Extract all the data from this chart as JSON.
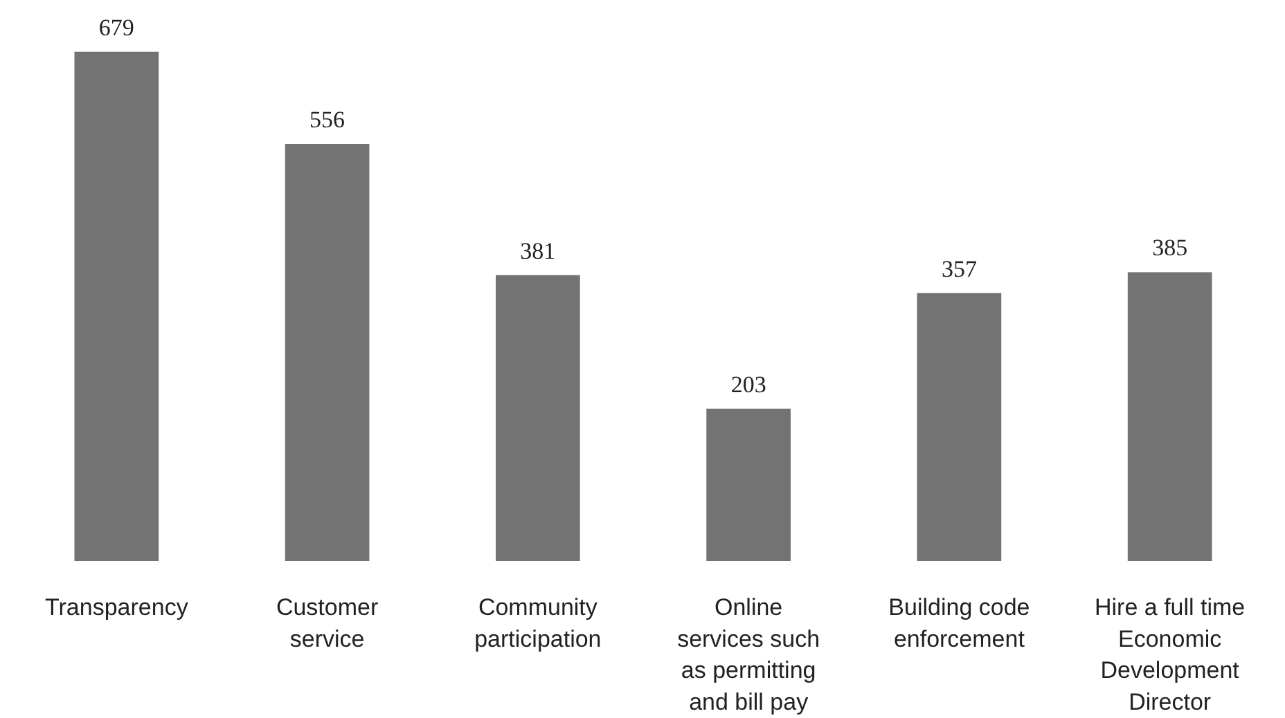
{
  "chart_data": {
    "type": "bar",
    "categories": [
      "Transparency",
      "Customer\nservice",
      "Community\nparticipation",
      "Online\nservices such\nas permitting\nand bill pay",
      "Building code\nenforcement",
      "Hire a full time\nEconomic\nDevelopment\nDirector"
    ],
    "values": [
      679,
      556,
      381,
      203,
      357,
      385
    ],
    "color": "#737373",
    "data_labels": true
  }
}
